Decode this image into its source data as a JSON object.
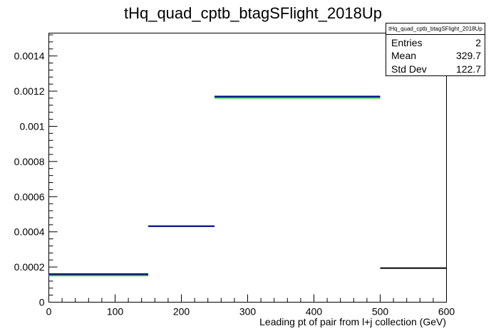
{
  "chart_data": {
    "type": "step-histogram",
    "title": "tHq_quad_cptb_btagSFlight_2018Up",
    "xlabel": "Leading pt of pair from l+j collection (GeV)",
    "ylabel": "",
    "xlim": [
      0,
      600
    ],
    "ylim": [
      0,
      0.00153
    ],
    "x_ticks": [
      0,
      100,
      200,
      300,
      400,
      500,
      600
    ],
    "y_ticks": [
      0,
      0.0002,
      0.0004,
      0.0006,
      0.0008,
      0.001,
      0.0012,
      0.0014
    ],
    "y_tick_labels": [
      "0",
      "0.0002",
      "0.0004",
      "0.0006",
      "0.0008",
      "0.001",
      "0.0012",
      "0.0014"
    ],
    "series": [
      {
        "color": "#00cc00",
        "bins": [
          {
            "x0": 0,
            "x1": 150,
            "y": 0.000152
          },
          {
            "x0": 150,
            "x1": 250,
            "y": 0.000432
          },
          {
            "x0": 250,
            "x1": 500,
            "y": 0.001162
          }
        ]
      },
      {
        "color": "#00008b",
        "bins": [
          {
            "x0": 0,
            "x1": 150,
            "y": 0.00016
          },
          {
            "x0": 150,
            "x1": 250,
            "y": 0.000432
          },
          {
            "x0": 250,
            "x1": 500,
            "y": 0.00117
          }
        ]
      },
      {
        "color": "#000000",
        "bins": [
          {
            "x0": 500,
            "x1": 600,
            "y": 0.000194
          }
        ]
      }
    ],
    "stats_box": {
      "title": "tHq_quad_cptb_btagSFlight_2018Up",
      "rows": [
        {
          "label": "Entries",
          "value": "2"
        },
        {
          "label": "Mean",
          "value": "329.7"
        },
        {
          "label": "Std Dev",
          "value": "122.7"
        }
      ],
      "placement": "top-right"
    },
    "grid": false
  }
}
